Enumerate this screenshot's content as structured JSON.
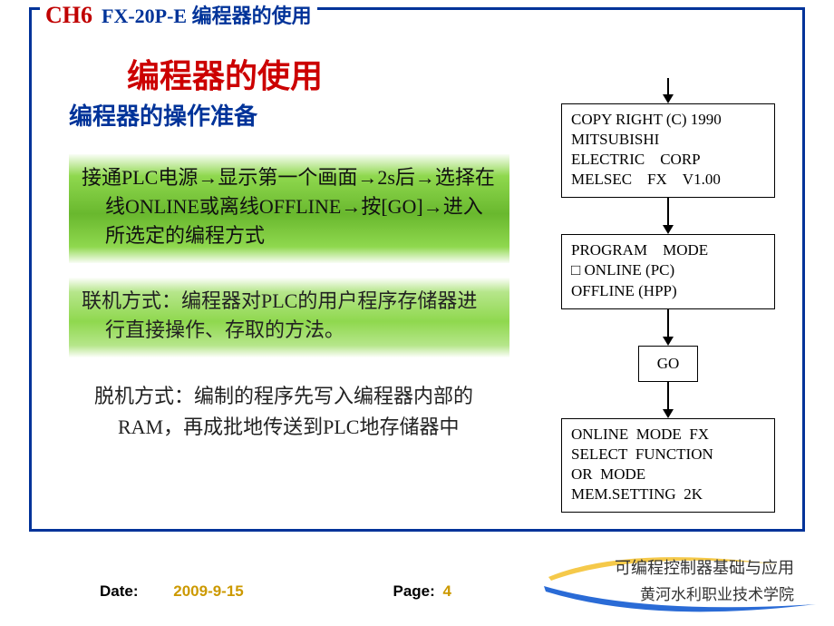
{
  "colors": {
    "frame": "#003399",
    "ch6": "#c00000",
    "title": "#cc0000",
    "subsection": "#003399",
    "green_mid": "#69b82e",
    "green_light": "#8fd84e",
    "footer_val": "#cc9900",
    "swoosh_yellow": "#f5c94a",
    "swoosh_blue": "#2a6bd6",
    "flow_border": "#000000"
  },
  "typography": {
    "title_fontsize": 36,
    "subsection_fontsize": 26,
    "body_fontsize": 22,
    "flow_fontsize": 17,
    "footer_fontsize": 17
  },
  "header": {
    "ch": "CH6",
    "subtitle": "FX-20P-E 编程器的使用"
  },
  "title": "编程器的使用",
  "subsection": "编程器的操作准备",
  "green1": "接通PLC电源→显示第一个画面→2s后→选择在线ONLINE或离线OFFLINE→按[GO]→进入所选定的编程方式",
  "green2": "联机方式：编程器对PLC的用户程序存储器进行直接操作、存取的方法。",
  "plain": "脱机方式：编制的程序先写入编程器内部的RAM，再成批地传送到PLC地存储器中",
  "flow": {
    "type": "flowchart",
    "direction": "vertical",
    "node_border_color": "#000000",
    "node_bg_color": "#ffffff",
    "arrow_color": "#000000",
    "box1_lines": [
      "COPY RIGHT (C) 1990",
      "MITSUBISHI",
      "ELECTRIC CORP",
      "MELSEC FX V1.00"
    ],
    "box2_lines": [
      "PROGRAM MODE",
      "□ ONLINE (PC)",
      "OFFLINE (HPP)"
    ],
    "box3": "GO",
    "box4_lines": [
      "ONLINE  MODE  FX",
      "SELECT  FUNCTION",
      "OR  MODE",
      "MEM.SETTING  2K"
    ]
  },
  "footer": {
    "date_label": "Date:",
    "date_value": "2009-9-15",
    "page_label": "Page:",
    "page_value": "4"
  },
  "logo": {
    "line1": "可编程控制器基础与应用",
    "line2": "黄河水利职业技术学院"
  }
}
